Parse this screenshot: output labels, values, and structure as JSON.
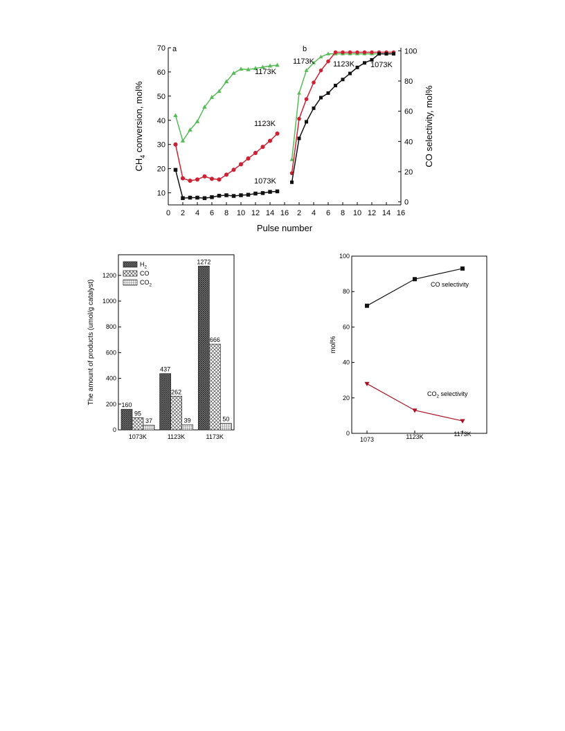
{
  "chart_data": [
    {
      "id": "panel-a",
      "type": "line",
      "panel_label": "a",
      "xlabel": "Pulse number",
      "ylabel_parts": [
        "CH",
        "4",
        " conversion, mol%"
      ],
      "xlim": [
        0,
        16
      ],
      "ylim": [
        5,
        70
      ],
      "xticks": [
        0,
        2,
        4,
        6,
        8,
        10,
        12,
        14,
        16
      ],
      "yticks": [
        10,
        20,
        30,
        40,
        50,
        60,
        70
      ],
      "x": [
        1,
        2,
        3,
        4,
        5,
        6,
        7,
        8,
        9,
        10,
        11,
        12,
        13,
        14,
        15
      ],
      "series": [
        {
          "label": "1173K",
          "color": "#55bb55",
          "marker": "triangle",
          "values": [
            42,
            31.5,
            36,
            39.5,
            45.5,
            49.5,
            52,
            56,
            59.5,
            61.2,
            61,
            61.5,
            62,
            62.5,
            62.8
          ]
        },
        {
          "label": "1123K",
          "color": "#cc2233",
          "marker": "circle",
          "values": [
            30,
            16,
            15,
            15.5,
            16.8,
            15.8,
            15.5,
            17.5,
            19.5,
            21.8,
            24.2,
            26.5,
            29,
            31.5,
            34.5
          ]
        },
        {
          "label": "1073K",
          "color": "#111111",
          "marker": "square",
          "values": [
            19.5,
            7.8,
            8,
            8,
            7.8,
            8.2,
            8.8,
            9,
            8.7,
            9,
            9.2,
            9.7,
            9.9,
            10.4,
            10.6
          ]
        }
      ]
    },
    {
      "id": "panel-b",
      "type": "line",
      "panel_label": "b",
      "xlabel": "Pulse number",
      "ylabel": "CO  selectivity, mol%",
      "xlim": [
        0,
        16
      ],
      "ylim": [
        -2,
        102
      ],
      "xticks": [
        0,
        2,
        4,
        6,
        8,
        10,
        12,
        14,
        16
      ],
      "yticks": [
        0,
        20,
        40,
        60,
        80,
        100
      ],
      "x": [
        1,
        2,
        3,
        4,
        5,
        6,
        7,
        8,
        9,
        10,
        11,
        12,
        13,
        14,
        15
      ],
      "series": [
        {
          "label": "1173K",
          "color": "#55bb55",
          "marker": "triangle",
          "values": [
            28,
            72,
            87,
            92,
            96,
            98,
            98,
            98,
            98,
            98,
            98,
            98,
            98,
            98,
            98
          ]
        },
        {
          "label": "1123K",
          "color": "#cc2233",
          "marker": "circle",
          "values": [
            19,
            55,
            68,
            79,
            87,
            93,
            99,
            99,
            99,
            99,
            99,
            99,
            99,
            99,
            99
          ]
        },
        {
          "label": "1073K",
          "color": "#111111",
          "marker": "square",
          "values": [
            13,
            42,
            53,
            62,
            69,
            72,
            77,
            81,
            85,
            89,
            92,
            94,
            98,
            98,
            98
          ]
        }
      ]
    },
    {
      "id": "panel-c",
      "type": "bar",
      "ylabel": "The amount of products (umol/g catalyst)",
      "categories": [
        "1073K",
        "1123K",
        "1173K"
      ],
      "ylim": [
        0,
        1360
      ],
      "yticks": [
        0,
        200,
        400,
        600,
        800,
        1000,
        1200
      ],
      "series": [
        {
          "name_parts": [
            "H",
            "2",
            ""
          ],
          "pattern": "dense",
          "values": [
            160,
            437,
            1272
          ]
        },
        {
          "name_parts": [
            "CO",
            "",
            ""
          ],
          "pattern": "cross",
          "values": [
            95,
            262,
            666
          ]
        },
        {
          "name_parts": [
            "CO",
            "2",
            ""
          ],
          "pattern": "grid",
          "values": [
            37,
            39,
            50
          ]
        }
      ]
    },
    {
      "id": "panel-d",
      "type": "line",
      "ylabel": "mol%",
      "categories": [
        "1073",
        "1123K",
        "1173K"
      ],
      "ylim": [
        0,
        100
      ],
      "yticks": [
        0,
        20,
        40,
        60,
        80,
        100
      ],
      "series": [
        {
          "name_parts": [
            "CO selectivity",
            "",
            ""
          ],
          "color": "#111111",
          "marker": "square",
          "values": [
            72,
            87,
            93
          ]
        },
        {
          "name_parts": [
            "CO",
            "2",
            " selectivity"
          ],
          "color": "#aa1122",
          "marker": "triangle-down",
          "values": [
            28,
            13,
            7
          ]
        }
      ]
    }
  ]
}
